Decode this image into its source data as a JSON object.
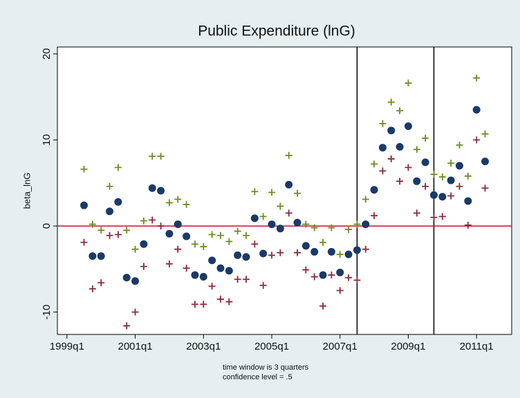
{
  "chart_data": {
    "type": "scatter",
    "title": "Public Expenditure (lnG)",
    "y_label": "beta_lnG",
    "notes": [
      "time window is 3 quarters",
      "confidence level = .5"
    ],
    "x": [
      1999.5,
      1999.75,
      2000,
      2000.25,
      2000.5,
      2000.75,
      2001,
      2001.25,
      2001.5,
      2001.75,
      2002,
      2002.25,
      2002.5,
      2002.75,
      2003,
      2003.25,
      2003.5,
      2003.75,
      2004,
      2004.25,
      2004.5,
      2004.75,
      2005,
      2005.25,
      2005.5,
      2005.75,
      2006,
      2006.25,
      2006.5,
      2006.75,
      2007,
      2007.25,
      2007.5,
      2007.75,
      2008,
      2008.25,
      2008.5,
      2008.75,
      2009,
      2009.25,
      2009.5,
      2009.75,
      2010,
      2010.25,
      2010.5,
      2010.75,
      2011,
      2011.25
    ],
    "series": [
      {
        "color": "#6b8e23",
        "marker": "plus",
        "values": [
          6.6,
          0.2,
          -0.5,
          4.6,
          6.8,
          -0.5,
          -2.7,
          0.6,
          8.1,
          8.1,
          2.7,
          3.1,
          2.5,
          -2.1,
          -2.4,
          -1.0,
          -1.1,
          -1.8,
          -0.6,
          -1.1,
          4.0,
          1.1,
          3.9,
          2.3,
          8.2,
          3.8,
          0.2,
          -0.2,
          -1.9,
          -0.2,
          -3.3,
          -0.4,
          0.2,
          3.1,
          7.2,
          11.9,
          14.4,
          13.4,
          16.6,
          8.9,
          10.2,
          6.0,
          5.7,
          7.3,
          9.4,
          5.8,
          17.2,
          10.7
        ]
      },
      {
        "color": "#8b2a3a",
        "marker": "plus",
        "values": [
          -1.9,
          -7.3,
          -6.6,
          -1.1,
          -1.0,
          -11.6,
          -10.0,
          -4.7,
          0.7,
          0.0,
          -4.4,
          -2.7,
          -4.9,
          -9.1,
          -9.1,
          -7.0,
          -8.5,
          -8.8,
          -6.2,
          -6.2,
          -2.1,
          -6.9,
          -3.4,
          -3.1,
          1.5,
          -3.1,
          -5.1,
          -5.9,
          -9.3,
          -5.7,
          -7.5,
          -6.0,
          -6.3,
          -2.7,
          1.2,
          6.4,
          7.8,
          5.2,
          6.8,
          1.5,
          4.6,
          1.0,
          1.1,
          3.5,
          4.6,
          0.1,
          10.0,
          4.4
        ]
      },
      {
        "color": "#1a3a68",
        "marker": "dot",
        "values": [
          2.4,
          -3.5,
          -3.5,
          1.7,
          2.8,
          -6.0,
          -6.4,
          -2.1,
          4.4,
          4.1,
          -0.9,
          0.2,
          -1.2,
          -5.7,
          -5.9,
          -4.0,
          -4.9,
          -5.2,
          -3.4,
          -3.6,
          0.9,
          -3.2,
          0.2,
          -0.3,
          4.8,
          0.4,
          -2.3,
          -3.0,
          -5.7,
          -3.0,
          -5.4,
          -3.3,
          -2.8,
          0.2,
          4.2,
          9.1,
          11.1,
          9.2,
          11.6,
          5.2,
          7.4,
          3.6,
          3.4,
          5.3,
          7.0,
          2.9,
          13.5,
          7.5
        ]
      }
    ],
    "xlim": [
      1998.72,
      2012.03
    ],
    "ylim": [
      -12.6,
      20.8
    ],
    "xticks": [
      {
        "value": 1999,
        "label": "1999q1"
      },
      {
        "value": 2001,
        "label": "2001q1"
      },
      {
        "value": 2003,
        "label": "2003q1"
      },
      {
        "value": 2005,
        "label": "2005q1"
      },
      {
        "value": 2007,
        "label": "2007q1"
      },
      {
        "value": 2009,
        "label": "2009q1"
      },
      {
        "value": 2011,
        "label": "2011q1"
      }
    ],
    "yticks": [
      -10,
      0,
      10,
      20
    ],
    "vlines": [
      2007.5,
      2009.75
    ],
    "hline": 0,
    "hline_color": "#c8102e"
  }
}
